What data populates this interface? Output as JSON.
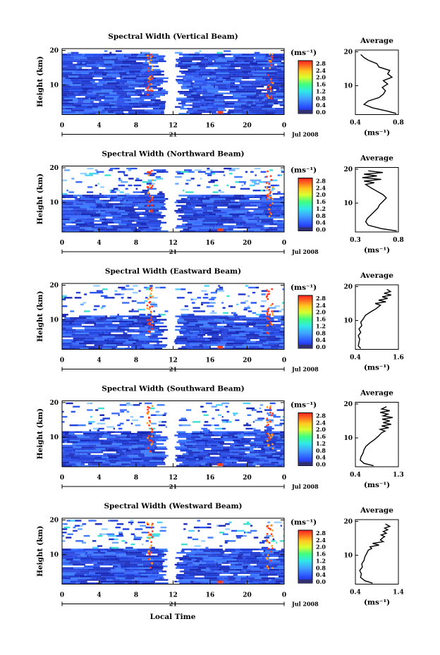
{
  "figure": {
    "common_xlabel": "Local Time",
    "height_label": "Height (km)",
    "date_label": "Jul 2008",
    "date_day": "21",
    "colorbar_unit": "(ms⁻¹)",
    "colorbar_ticks": [
      "2.8",
      "2.4",
      "2.0",
      "1.6",
      "1.2",
      "0.8",
      "0.4",
      "0.0"
    ],
    "average_title": "Average",
    "average_unit": "(ms⁻¹)"
  },
  "chart_data": [
    {
      "type": "heatmap",
      "title": "Spectral Width (Vertical Beam)",
      "x_ticks": [
        "0",
        "4",
        "8",
        "12",
        "16",
        "20",
        "0"
      ],
      "xlim": [
        0,
        24
      ],
      "y_ticks": [
        "20",
        "10"
      ],
      "ylim": [
        1.5,
        20.5
      ],
      "top_km": 19.5,
      "gap_hours": [
        11.5,
        12.1
      ],
      "color_scale": [
        0.0,
        3.0
      ],
      "profile": {
        "xlim": [
          0.4,
          0.8
        ],
        "x_ticks": [
          "0.4",
          "0.8"
        ],
        "points": [
          [
            0.78,
            1.8
          ],
          [
            0.7,
            2.5
          ],
          [
            0.56,
            3.5
          ],
          [
            0.48,
            4.5
          ],
          [
            0.52,
            5.5
          ],
          [
            0.62,
            6.5
          ],
          [
            0.66,
            7.5
          ],
          [
            0.68,
            8.5
          ],
          [
            0.65,
            9.5
          ],
          [
            0.7,
            10.5
          ],
          [
            0.66,
            11.5
          ],
          [
            0.74,
            12.5
          ],
          [
            0.7,
            13.5
          ],
          [
            0.72,
            14.5
          ],
          [
            0.62,
            15.5
          ],
          [
            0.6,
            16.5
          ],
          [
            0.52,
            17.5
          ],
          [
            0.48,
            18.3
          ],
          [
            0.45,
            19.2
          ]
        ]
      }
    },
    {
      "type": "heatmap",
      "title": "Spectral Width (Northward Beam)",
      "x_ticks": [
        "0",
        "4",
        "8",
        "12",
        "16",
        "20",
        "0"
      ],
      "xlim": [
        0,
        24
      ],
      "y_ticks": [
        "20",
        "10"
      ],
      "ylim": [
        1.5,
        20.5
      ],
      "top_km": 12.5,
      "gap_hours": [
        11.5,
        12.1
      ],
      "color_scale": [
        0.0,
        3.0
      ],
      "profile": {
        "xlim": [
          0.3,
          0.8
        ],
        "x_ticks": [
          "0.3",
          "0.8"
        ],
        "points": [
          [
            0.78,
            1.8
          ],
          [
            0.6,
            2.5
          ],
          [
            0.45,
            3.5
          ],
          [
            0.42,
            4.5
          ],
          [
            0.44,
            5.5
          ],
          [
            0.48,
            6.5
          ],
          [
            0.52,
            7.5
          ],
          [
            0.56,
            8.5
          ],
          [
            0.58,
            9.5
          ],
          [
            0.62,
            10.5
          ],
          [
            0.66,
            11.5
          ],
          [
            0.62,
            12.5
          ],
          [
            0.55,
            13.5
          ],
          [
            0.48,
            14.5
          ],
          [
            0.42,
            15.5
          ],
          [
            0.52,
            16.0
          ],
          [
            0.4,
            16.5
          ],
          [
            0.6,
            17.0
          ],
          [
            0.38,
            17.5
          ],
          [
            0.55,
            18.0
          ],
          [
            0.4,
            18.5
          ],
          [
            0.62,
            19.0
          ],
          [
            0.45,
            19.5
          ]
        ]
      }
    },
    {
      "type": "heatmap",
      "title": "Spectral Width (Eastward Beam)",
      "x_ticks": [
        "0",
        "4",
        "8",
        "12",
        "16",
        "20",
        "0"
      ],
      "xlim": [
        0,
        24
      ],
      "y_ticks": [
        "20",
        "10"
      ],
      "ylim": [
        1.5,
        20.5
      ],
      "top_km": 11.5,
      "gap_hours": [
        11.5,
        12.1
      ],
      "color_scale": [
        0.0,
        3.0
      ],
      "profile": {
        "xlim": [
          0.4,
          1.6
        ],
        "x_ticks": [
          "0.4",
          "1.6"
        ],
        "points": [
          [
            0.55,
            1.8
          ],
          [
            0.48,
            2.5
          ],
          [
            0.5,
            3.5
          ],
          [
            0.52,
            4.5
          ],
          [
            0.48,
            5.5
          ],
          [
            0.55,
            6.5
          ],
          [
            0.5,
            7.5
          ],
          [
            0.58,
            8.5
          ],
          [
            0.55,
            9.5
          ],
          [
            0.62,
            10.5
          ],
          [
            0.68,
            11.5
          ],
          [
            0.82,
            12.5
          ],
          [
            0.98,
            13.5
          ],
          [
            1.1,
            14.5
          ],
          [
            0.95,
            15.0
          ],
          [
            1.25,
            15.5
          ],
          [
            1.05,
            16.0
          ],
          [
            1.3,
            16.5
          ],
          [
            1.15,
            17.0
          ],
          [
            1.4,
            17.5
          ],
          [
            1.2,
            18.0
          ],
          [
            1.38,
            18.5
          ],
          [
            1.28,
            19.2
          ]
        ]
      }
    },
    {
      "type": "heatmap",
      "title": "Spectral Width (Southward Beam)",
      "x_ticks": [
        "0",
        "4",
        "8",
        "12",
        "16",
        "20",
        "0"
      ],
      "xlim": [
        0,
        24
      ],
      "y_ticks": [
        "20",
        "10"
      ],
      "ylim": [
        1.5,
        20.5
      ],
      "top_km": 12.0,
      "gap_hours": [
        11.5,
        12.1
      ],
      "color_scale": [
        0.0,
        3.0
      ],
      "profile": {
        "xlim": [
          0.4,
          1.3
        ],
        "x_ticks": [
          "0.4",
          "1.3"
        ],
        "points": [
          [
            0.78,
            1.8
          ],
          [
            0.58,
            2.5
          ],
          [
            0.5,
            3.5
          ],
          [
            0.52,
            4.5
          ],
          [
            0.56,
            5.5
          ],
          [
            0.58,
            6.5
          ],
          [
            0.62,
            7.5
          ],
          [
            0.7,
            8.5
          ],
          [
            0.8,
            9.5
          ],
          [
            0.88,
            10.5
          ],
          [
            0.95,
            11.5
          ],
          [
            1.02,
            12.0
          ],
          [
            0.92,
            12.5
          ],
          [
            1.1,
            13.0
          ],
          [
            0.95,
            13.5
          ],
          [
            1.15,
            14.0
          ],
          [
            0.98,
            14.5
          ],
          [
            1.12,
            15.0
          ],
          [
            0.96,
            15.5
          ],
          [
            1.18,
            16.0
          ],
          [
            0.98,
            16.5
          ],
          [
            1.08,
            17.0
          ],
          [
            0.92,
            17.5
          ],
          [
            1.12,
            18.0
          ],
          [
            0.95,
            18.5
          ],
          [
            1.05,
            19.2
          ]
        ]
      }
    },
    {
      "type": "heatmap",
      "title": "Spectral Width (Westward Beam)",
      "x_ticks": [
        "0",
        "4",
        "8",
        "12",
        "16",
        "20",
        "0"
      ],
      "xlim": [
        0,
        24
      ],
      "y_ticks": [
        "20",
        "10"
      ],
      "ylim": [
        1.5,
        20.5
      ],
      "top_km": 12.0,
      "gap_hours": [
        11.5,
        12.1
      ],
      "color_scale": [
        0.0,
        3.0
      ],
      "profile": {
        "xlim": [
          0.4,
          1.4
        ],
        "x_ticks": [
          "0.4",
          "1.4"
        ],
        "points": [
          [
            0.8,
            1.8
          ],
          [
            0.62,
            2.5
          ],
          [
            0.52,
            3.5
          ],
          [
            0.54,
            4.5
          ],
          [
            0.5,
            5.5
          ],
          [
            0.56,
            6.5
          ],
          [
            0.55,
            7.5
          ],
          [
            0.6,
            8.5
          ],
          [
            0.62,
            9.5
          ],
          [
            0.66,
            10.5
          ],
          [
            0.7,
            11.5
          ],
          [
            0.78,
            12.0
          ],
          [
            0.74,
            12.5
          ],
          [
            0.95,
            13.0
          ],
          [
            0.8,
            13.5
          ],
          [
            1.05,
            14.0
          ],
          [
            0.98,
            14.5
          ],
          [
            1.02,
            15.0
          ],
          [
            1.08,
            15.5
          ],
          [
            1.0,
            16.0
          ],
          [
            1.12,
            16.5
          ],
          [
            1.05,
            17.0
          ],
          [
            1.15,
            17.5
          ],
          [
            1.08,
            18.0
          ],
          [
            1.2,
            18.5
          ],
          [
            1.1,
            19.2
          ]
        ]
      }
    }
  ]
}
